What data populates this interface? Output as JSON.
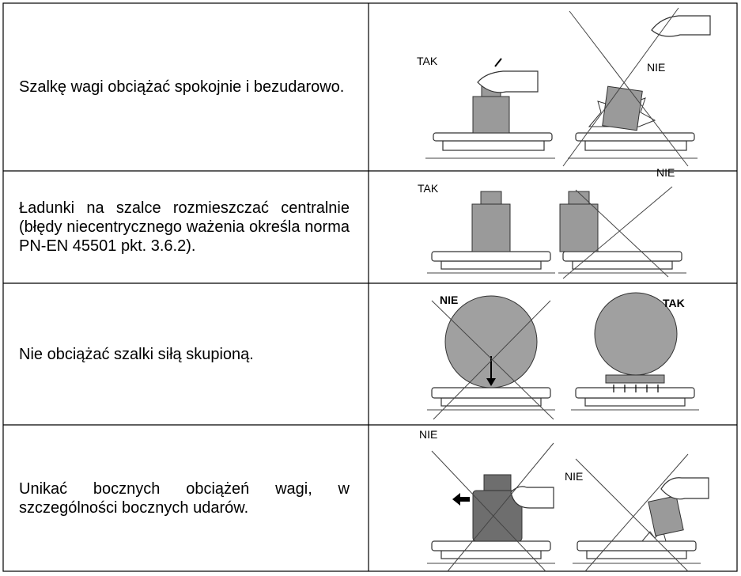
{
  "table": {
    "rows": [
      {
        "text": "Szalkę wagi obciążać spokojnie i bezudarowo.",
        "labels": [
          "TAK",
          "NIE"
        ]
      },
      {
        "text": "Ładunki na szalce rozmieszczać centralnie (błędy niecentrycznego ważenia określa norma PN-EN 45501 pkt. 3.6.2).",
        "labels": [
          "TAK",
          "NIE"
        ]
      },
      {
        "text": "Nie obciążać szalki siłą skupioną.",
        "labels": [
          "NIE",
          "TAK"
        ]
      },
      {
        "text": "Unikać bocznych obciążeń wagi, w szczególności bocznych udarów.",
        "labels": [
          "NIE",
          "NIE"
        ]
      }
    ]
  }
}
